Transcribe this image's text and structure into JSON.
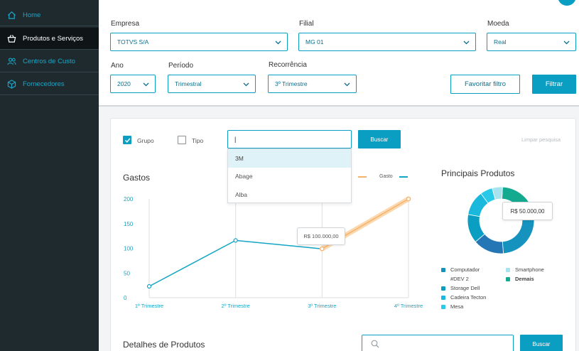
{
  "sidebar": {
    "items": [
      {
        "label": "Home",
        "icon": "home-icon"
      },
      {
        "label": "Produtos e Serviços",
        "icon": "basket-icon",
        "active": true
      },
      {
        "label": "Centros de Custo",
        "icon": "users-icon"
      },
      {
        "label": "Fornecedores",
        "icon": "box-icon"
      }
    ]
  },
  "filters": {
    "empresa": {
      "label": "Empresa",
      "value": "TOTVS S/A"
    },
    "filial": {
      "label": "Filial",
      "value": "MG 01"
    },
    "moeda": {
      "label": "Moeda",
      "value": "Real"
    },
    "ano": {
      "label": "Ano",
      "value": "2020"
    },
    "periodo": {
      "label": "Período",
      "value": "Trimestral"
    },
    "recorrencia": {
      "label": "Recorrência",
      "value": "3º Trimestre"
    },
    "favoritar_label": "Favoritar filtro",
    "filtrar_label": "Filtrar"
  },
  "search": {
    "grupo_label": "Grupo",
    "tipo_label": "Tipo",
    "grupo_checked": true,
    "tipo_checked": false,
    "input_value": "|",
    "buscar_label": "Buscar",
    "limpar_label": "Limpar pesquisa",
    "dropdown": [
      "3M",
      "Abage",
      "Alba"
    ]
  },
  "gastos": {
    "title": "Gastos",
    "legend_gasto": "Gasto",
    "tooltip": "R$ 100.000,00"
  },
  "chart_data": {
    "type": "line",
    "title": "Gastos",
    "categories": [
      "1º Trimestre",
      "2º Trimestre",
      "3º Trimestre",
      "4º Trimestre"
    ],
    "y_ticks": [
      0,
      50,
      100,
      150,
      200
    ],
    "ylim": [
      0,
      200
    ],
    "series": [
      {
        "name": "Gasto",
        "color": "#13a5c4",
        "values": [
          23,
          116,
          99,
          null
        ]
      },
      {
        "name": "",
        "color": "#f7b26a",
        "values": [
          null,
          null,
          99,
          200
        ]
      }
    ],
    "grid": true,
    "legend_position": "top-right"
  },
  "principais": {
    "title": "Principais Produtos",
    "tooltip": "R$ 50.000,00",
    "slices": [
      {
        "name": "Computador",
        "color": "#1592bd",
        "value": 24
      },
      {
        "name": "#DEV 2",
        "color": "#2476b4",
        "value": 15
      },
      {
        "name": "Storage Dell",
        "color": "#0b9ec3",
        "value": 14
      },
      {
        "name": "Cadeira Tecton",
        "color": "#19b8dc",
        "value": 12
      },
      {
        "name": "Mesa",
        "color": "#29c9e8",
        "value": 6
      },
      {
        "name": "Smartphone",
        "color": "#a7e3ef",
        "value": 5
      },
      {
        "name": "Demais",
        "color": "#14aa90",
        "value": 24
      }
    ]
  },
  "detalhes": {
    "title": "Detalhes de Produtos",
    "buscar_label": "Buscar"
  }
}
